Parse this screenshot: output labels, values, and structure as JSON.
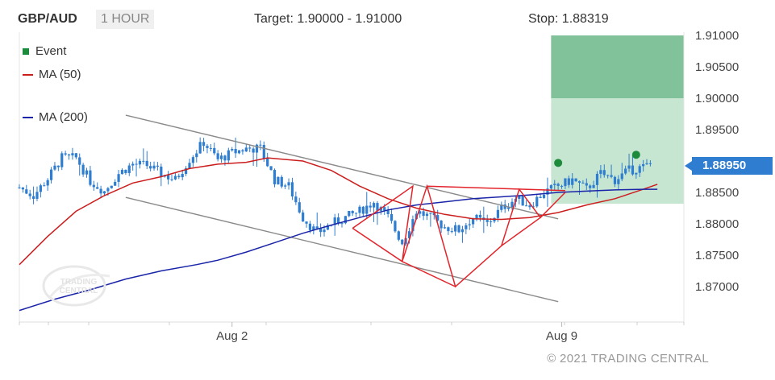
{
  "header": {
    "symbol": "GBP/AUD",
    "timeframe": "1 HOUR",
    "target": "Target: 1.90000 - 1.91000",
    "stop": "Stop: 1.88319"
  },
  "legend": [
    {
      "label": "Event",
      "color": "#1e8a3c",
      "kind": "dot"
    },
    {
      "label": "MA (50)",
      "color": "#cc1d1d",
      "kind": "line"
    },
    {
      "label": "MA (200)",
      "color": "#1a24a8",
      "kind": "line"
    }
  ],
  "copyright": "© 2021 TRADING CENTRAL",
  "watermark": "TRADING CENTRAL",
  "colors": {
    "candle": "#2e7dd0",
    "target_zone": "#82c29a",
    "stop_zone": "#c6e6d2",
    "event": "#1e8a3c",
    "ma50": "#cc1d1d",
    "ma200": "#1a24a8",
    "channel": "#8a8a8a",
    "pattern": "#e2242b"
  },
  "chart_data": {
    "type": "candlestick",
    "title": "GBP/AUD",
    "timeframe": "1 HOUR",
    "ylim": [
      1.866,
      1.9125
    ],
    "x_index_range": [
      0,
      182
    ],
    "yticks": [
      "1.87000",
      "1.87500",
      "1.88000",
      "1.88500",
      "1.89000",
      "1.89500",
      "1.90000",
      "1.90500",
      "1.91000"
    ],
    "xticks": [
      {
        "label": "Aug 2",
        "index": 60
      },
      {
        "label": "Aug 9",
        "index": 153
      }
    ],
    "last_price": "1.88950",
    "target_range": [
      1.9,
      1.91
    ],
    "stop": 1.88319,
    "price_series": [
      [
        0,
        1.8858
      ],
      [
        4,
        1.8845
      ],
      [
        8,
        1.8872
      ],
      [
        12,
        1.8905
      ],
      [
        16,
        1.8905
      ],
      [
        20,
        1.8868
      ],
      [
        24,
        1.8852
      ],
      [
        28,
        1.888
      ],
      [
        32,
        1.8895
      ],
      [
        36,
        1.8893
      ],
      [
        40,
        1.888
      ],
      [
        44,
        1.887
      ],
      [
        48,
        1.8903
      ],
      [
        52,
        1.893
      ],
      [
        56,
        1.8902
      ],
      [
        60,
        1.8913
      ],
      [
        64,
        1.892
      ],
      [
        68,
        1.892
      ],
      [
        72,
        1.887
      ],
      [
        76,
        1.886
      ],
      [
        80,
        1.881
      ],
      [
        84,
        1.8785
      ],
      [
        88,
        1.88
      ],
      [
        92,
        1.881
      ],
      [
        96,
        1.882
      ],
      [
        100,
        1.8835
      ],
      [
        104,
        1.881
      ],
      [
        108,
        1.877
      ],
      [
        112,
        1.882
      ],
      [
        116,
        1.881
      ],
      [
        120,
        1.8795
      ],
      [
        124,
        1.879
      ],
      [
        128,
        1.881
      ],
      [
        132,
        1.88
      ],
      [
        136,
        1.8825
      ],
      [
        140,
        1.884
      ],
      [
        144,
        1.883
      ],
      [
        148,
        1.885
      ],
      [
        152,
        1.886
      ],
      [
        156,
        1.887
      ],
      [
        160,
        1.8855
      ],
      [
        164,
        1.888
      ],
      [
        168,
        1.887
      ],
      [
        172,
        1.8885
      ],
      [
        176,
        1.889
      ],
      [
        178,
        1.8895
      ]
    ],
    "ma50": [
      [
        0,
        1.8735
      ],
      [
        8,
        1.878
      ],
      [
        16,
        1.882
      ],
      [
        24,
        1.8845
      ],
      [
        32,
        1.8865
      ],
      [
        40,
        1.8875
      ],
      [
        48,
        1.8888
      ],
      [
        56,
        1.8895
      ],
      [
        64,
        1.8898
      ],
      [
        70,
        1.8905
      ],
      [
        80,
        1.89
      ],
      [
        88,
        1.8885
      ],
      [
        96,
        1.886
      ],
      [
        104,
        1.884
      ],
      [
        112,
        1.8825
      ],
      [
        120,
        1.8815
      ],
      [
        128,
        1.8808
      ],
      [
        136,
        1.8807
      ],
      [
        144,
        1.881
      ],
      [
        152,
        1.8818
      ],
      [
        160,
        1.883
      ],
      [
        168,
        1.884
      ],
      [
        176,
        1.8855
      ],
      [
        180,
        1.8863
      ]
    ],
    "ma200": [
      [
        0,
        1.8662
      ],
      [
        10,
        1.868
      ],
      [
        20,
        1.8695
      ],
      [
        30,
        1.8712
      ],
      [
        40,
        1.8725
      ],
      [
        50,
        1.8735
      ],
      [
        56,
        1.8742
      ],
      [
        64,
        1.8755
      ],
      [
        72,
        1.877
      ],
      [
        80,
        1.8785
      ],
      [
        88,
        1.8798
      ],
      [
        96,
        1.881
      ],
      [
        104,
        1.8822
      ],
      [
        112,
        1.883
      ],
      [
        120,
        1.8835
      ],
      [
        128,
        1.884
      ],
      [
        136,
        1.8843
      ],
      [
        144,
        1.8846
      ],
      [
        152,
        1.885
      ],
      [
        160,
        1.8852
      ],
      [
        168,
        1.8854
      ],
      [
        176,
        1.8855
      ],
      [
        180,
        1.8855
      ]
    ],
    "channel_upper": [
      [
        30,
        1.8973
      ],
      [
        152,
        1.8808
      ]
    ],
    "channel_lower": [
      [
        30,
        1.8842
      ],
      [
        152,
        1.8676
      ]
    ],
    "events": [
      [
        152,
        1.8897
      ],
      [
        174,
        1.891
      ]
    ],
    "pattern": [
      [
        94,
        1.8793
      ],
      [
        111,
        1.886
      ],
      [
        108,
        1.874
      ],
      [
        115,
        1.886
      ],
      [
        123,
        1.87
      ],
      [
        136,
        1.8765
      ],
      [
        141,
        1.8855
      ],
      [
        147,
        1.881
      ],
      [
        154,
        1.885
      ],
      [
        147,
        1.881
      ],
      [
        136,
        1.8765
      ],
      [
        123,
        1.87
      ],
      [
        108,
        1.874
      ],
      [
        94,
        1.8793
      ]
    ],
    "pattern_neckline": [
      [
        115,
        1.886
      ],
      [
        154,
        1.8853
      ]
    ]
  }
}
